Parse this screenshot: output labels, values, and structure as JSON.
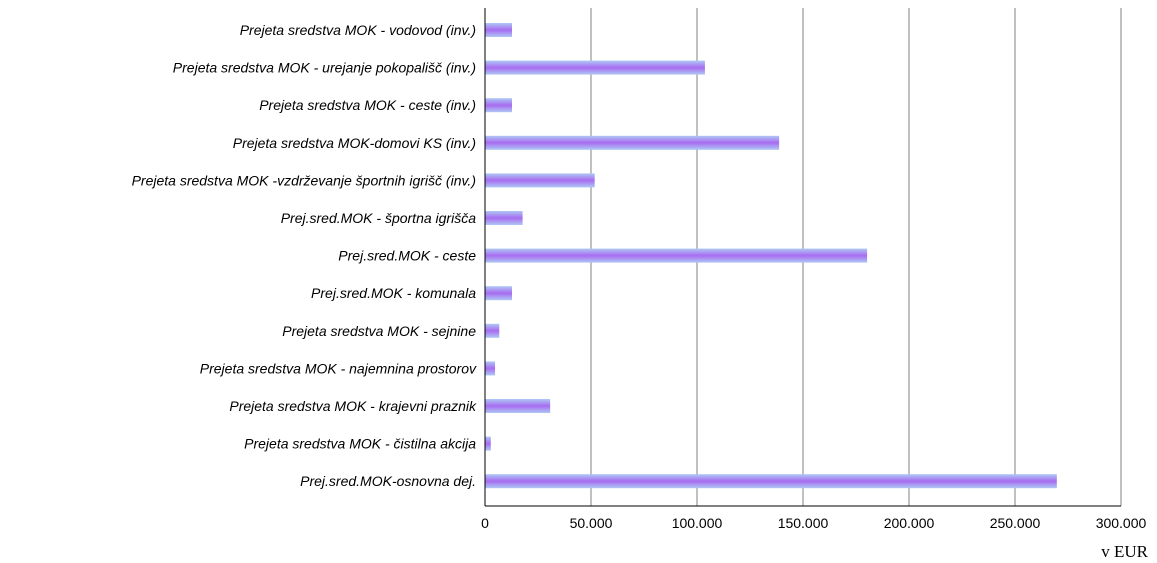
{
  "chart_data": {
    "type": "bar",
    "orientation": "horizontal",
    "categories": [
      "Prejeta sredstva MOK - vodovod (inv.)",
      "Prejeta sredstva MOK - urejanje pokopališč (inv.)",
      "Prejeta sredstva MOK - ceste (inv.)",
      "Prejeta sredstva MOK-domovi KS (inv.)",
      "Prejeta sredstva MOK -vzdrževanje športnih igrišč (inv.)",
      "Prej.sred.MOK - športna igrišča",
      "Prej.sred.MOK - ceste",
      "Prej.sred.MOK - komunala",
      "Prejeta sredstva MOK - sejnine",
      "Prejeta sredstva MOK - najemnina prostorov",
      "Prejeta sredstva MOK - krajevni praznik",
      "Prejeta sredstva MOK - čistilna akcija",
      "Prej.sred.MOK-osnovna dej."
    ],
    "values": [
      12500,
      103500,
      12500,
      138500,
      51500,
      17500,
      180000,
      12500,
      6500,
      4500,
      30500,
      2500,
      269500
    ],
    "xlim": [
      0,
      300000
    ],
    "xticks": [
      0,
      50000,
      100000,
      150000,
      200000,
      250000,
      300000
    ],
    "xtick_labels": [
      "0",
      "50.000",
      "100.000",
      "150.000",
      "200.000",
      "250.000",
      "300.000"
    ],
    "unit_label": "v EUR",
    "grid": true,
    "bar_color_light": "#aec8f5",
    "bar_color_dark": "#a86cf0",
    "grid_color": "#808080"
  }
}
